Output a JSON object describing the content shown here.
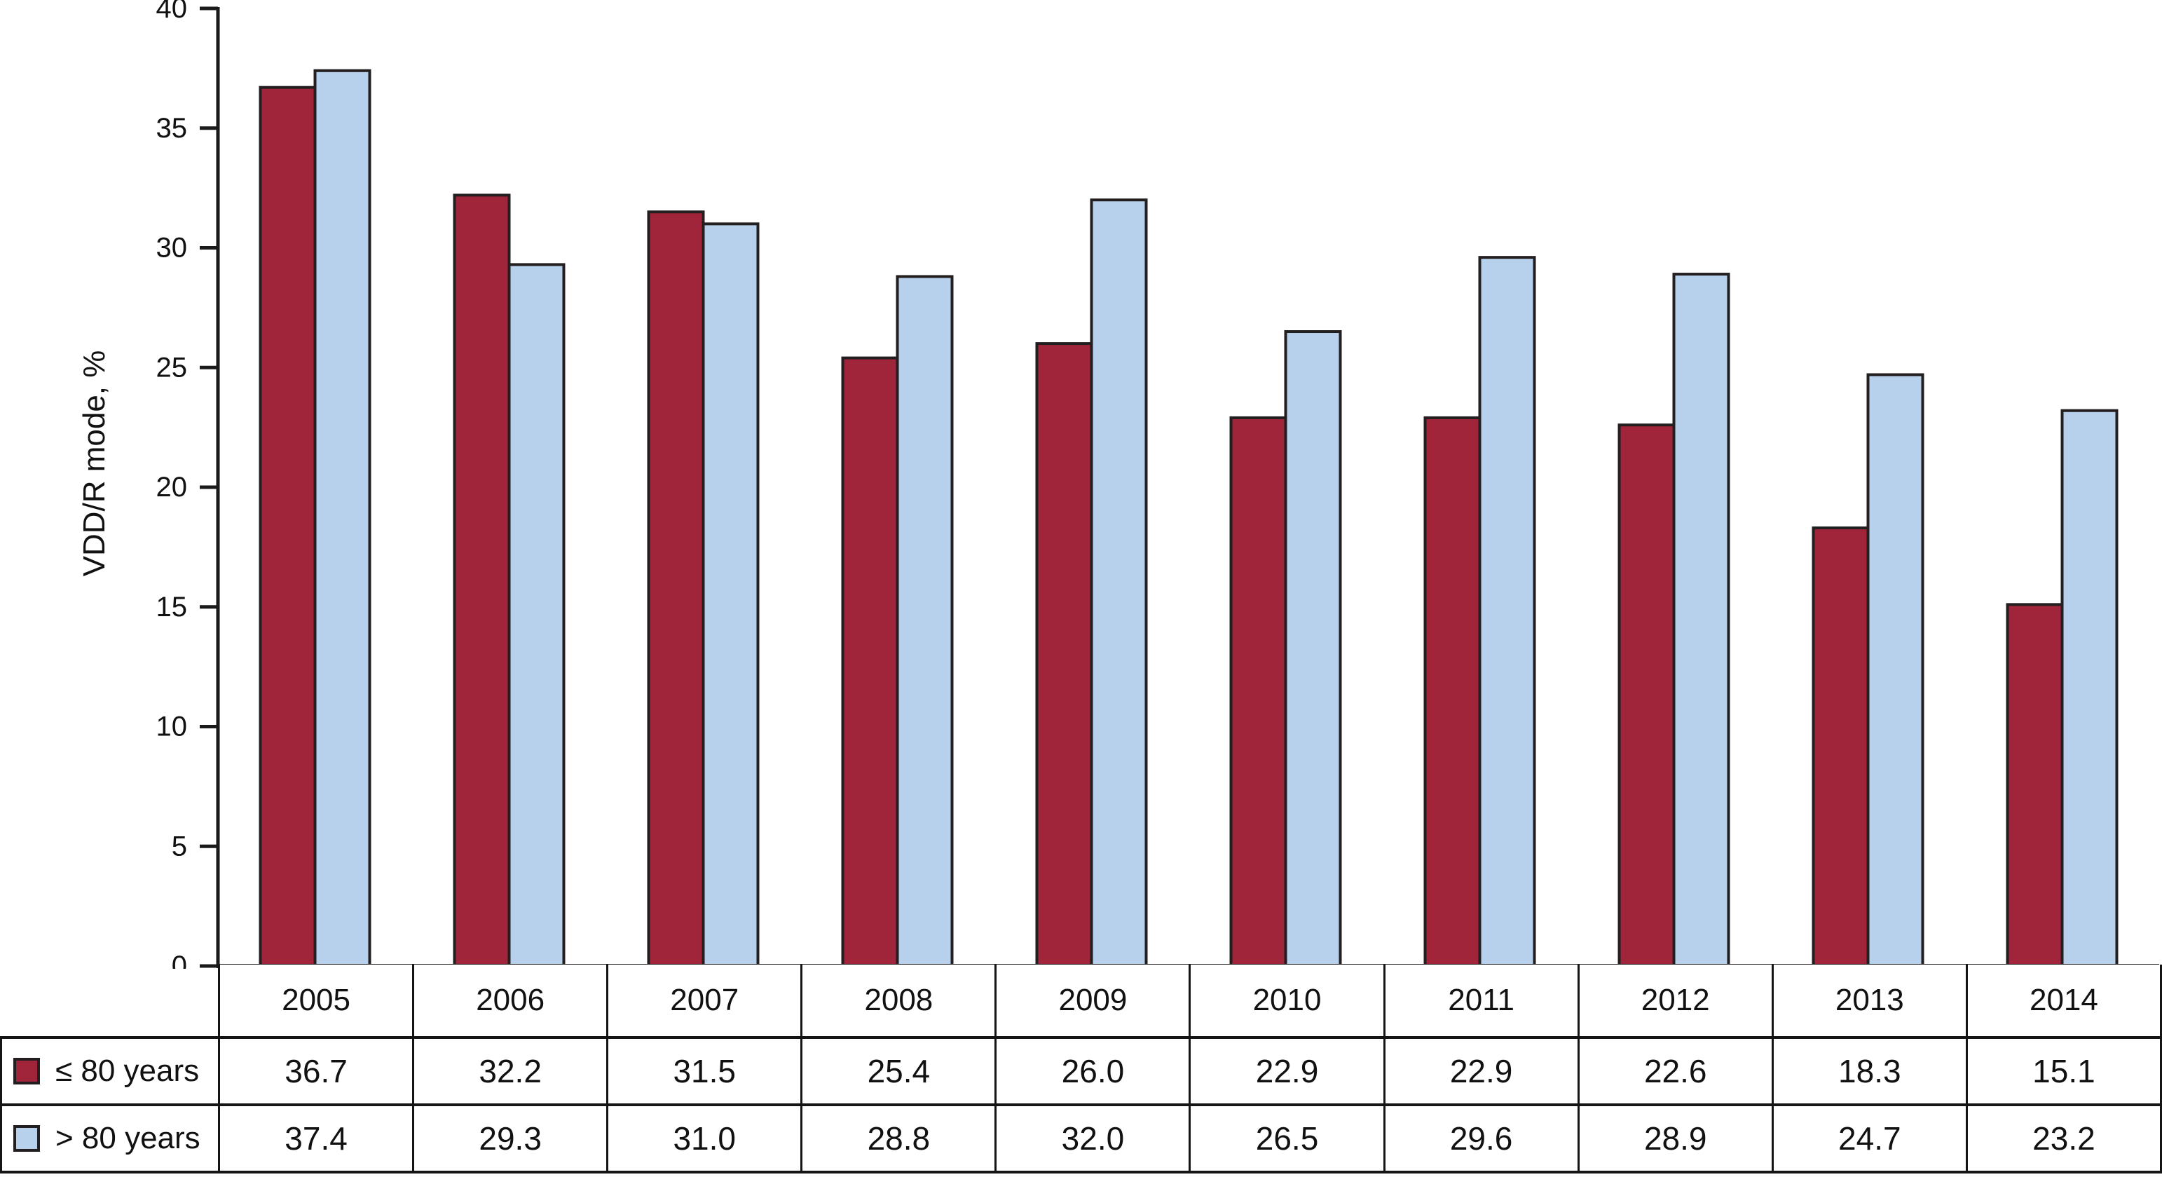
{
  "chart_data": {
    "type": "bar",
    "title": "",
    "ylabel": "VDD/R mode, %",
    "xlabel": "",
    "ylim": [
      0,
      40
    ],
    "ytick_step": 5,
    "ytick_labels": [
      "0",
      "5",
      "10",
      "15",
      "20",
      "25",
      "30",
      "35",
      "40"
    ],
    "grid": false,
    "legend_position": "table-left-column",
    "categories": [
      "2005",
      "2006",
      "2007",
      "2008",
      "2009",
      "2010",
      "2011",
      "2012",
      "2013",
      "2014"
    ],
    "series": [
      {
        "name": "≤ 80 years",
        "key": "le80",
        "color": "#A0253A",
        "values": [
          36.7,
          32.2,
          31.5,
          25.4,
          26.0,
          22.9,
          22.9,
          22.6,
          18.3,
          15.1
        ],
        "value_labels": [
          "36.7",
          "32.2",
          "31.5",
          "25.4",
          "26.0",
          "22.9",
          "22.9",
          "22.6",
          "18.3",
          "15.1"
        ]
      },
      {
        "name": "> 80 years",
        "key": "gt80",
        "color": "#B7D1EC",
        "values": [
          37.4,
          29.3,
          31.0,
          28.8,
          32.0,
          26.5,
          29.6,
          28.9,
          24.7,
          23.2
        ],
        "value_labels": [
          "37.4",
          "29.3",
          "31.0",
          "28.8",
          "32.0",
          "26.5",
          "29.6",
          "28.9",
          "24.7",
          "23.2"
        ]
      }
    ],
    "bar_border_color": "#231F20",
    "axis_color": "#1A1A1A",
    "table_line_color": "#141414"
  }
}
